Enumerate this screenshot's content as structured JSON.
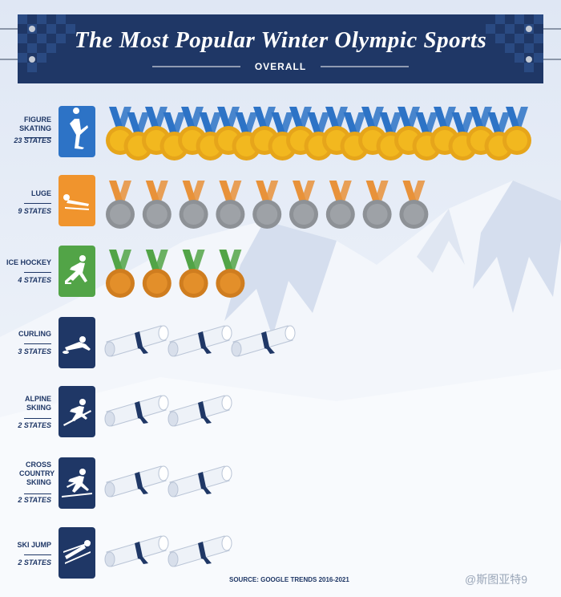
{
  "header": {
    "title": "The Most Popular Winter Olympic Sports",
    "subtitle": "OVERALL"
  },
  "chart_data": {
    "type": "pictograph",
    "title": "The Most Popular Winter Olympic Sports",
    "subtitle": "OVERALL",
    "unit": "STATES",
    "categories": [
      "FIGURE SKATING",
      "LUGE",
      "ICE HOCKEY",
      "CURLING",
      "ALPINE SKIING",
      "CROSS COUNTRY SKIING",
      "SKI JUMP"
    ],
    "values": [
      23,
      9,
      4,
      3,
      2,
      2,
      2
    ],
    "rows": [
      {
        "name": "FIGURE SKATING",
        "count_label": "23 STATES",
        "value": 23,
        "icon": "gold-medal-icon",
        "tile_icon": "figure-skater-icon",
        "tile_color": "#2d73c6"
      },
      {
        "name": "LUGE",
        "count_label": "9 STATES",
        "value": 9,
        "icon": "silver-medal-icon",
        "tile_icon": "luge-icon",
        "tile_color": "#f0942d"
      },
      {
        "name": "ICE HOCKEY",
        "count_label": "4 STATES",
        "value": 4,
        "icon": "bronze-medal-icon",
        "tile_icon": "hockey-player-icon",
        "tile_color": "#52a447"
      },
      {
        "name": "CURLING",
        "count_label": "3 STATES",
        "value": 3,
        "icon": "scroll-icon",
        "tile_icon": "curler-icon",
        "tile_color": "#1f3766"
      },
      {
        "name": "ALPINE SKIING",
        "count_label": "2 STATES",
        "value": 2,
        "icon": "scroll-icon",
        "tile_icon": "alpine-skier-icon",
        "tile_color": "#1f3766"
      },
      {
        "name": "CROSS COUNTRY SKIING",
        "count_label": "2 STATES",
        "value": 2,
        "icon": "scroll-icon",
        "tile_icon": "cross-country-skier-icon",
        "tile_color": "#1f3766"
      },
      {
        "name": "SKI JUMP",
        "count_label": "2 STATES",
        "value": 2,
        "icon": "scroll-icon",
        "tile_icon": "ski-jumper-icon",
        "tile_color": "#1f3766"
      }
    ],
    "source": "SOURCE: GOOGLE TRENDS 2016-2021"
  },
  "watermark": "@斯图亚特9",
  "colors": {
    "navy": "#1f3766",
    "gold": "#f2b81f",
    "silver": "#9ea2a7",
    "bronze": "#e38f2a",
    "ribbon_blue": "#2d73c6",
    "ribbon_orange": "#e8923a",
    "ribbon_green": "#52a447"
  }
}
